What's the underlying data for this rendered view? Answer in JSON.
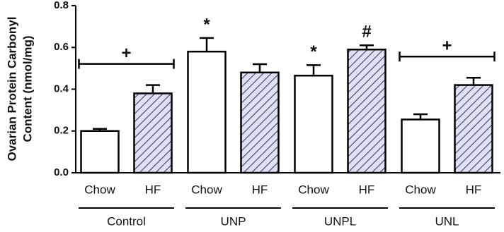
{
  "chart_data": {
    "type": "bar",
    "y_label": [
      "Ovarian Protein Carbonyl",
      "Content (nmol/mg)"
    ],
    "categories": [
      "Control",
      "UNP",
      "UNPL",
      "UNL"
    ],
    "series": [
      {
        "name": "Chow",
        "color": "#ffffff",
        "values": [
          0.2,
          0.58,
          0.465,
          0.255
        ],
        "errors": [
          0.01,
          0.065,
          0.05,
          0.025
        ]
      },
      {
        "name": "HF",
        "color": "#dfe0f3",
        "hatch": true,
        "values": [
          0.38,
          0.48,
          0.59,
          0.42
        ],
        "errors": [
          0.04,
          0.04,
          0.02,
          0.035
        ]
      }
    ],
    "ylim": [
      0,
      0.8
    ],
    "yticks": [
      {
        "value": 0,
        "label": "0.0"
      },
      0.2,
      0.4,
      0.6,
      0.8
    ],
    "annotations": [
      {
        "text": "+",
        "category": "Control"
      },
      {
        "text": "*",
        "category": "UNP",
        "series": "Chow"
      },
      {
        "text": "*",
        "category": "UNPL",
        "series": "Chow"
      },
      {
        "text": "#",
        "category": "UNPL",
        "series": "HF"
      },
      {
        "text": "+",
        "category": "UNL"
      }
    ]
  }
}
